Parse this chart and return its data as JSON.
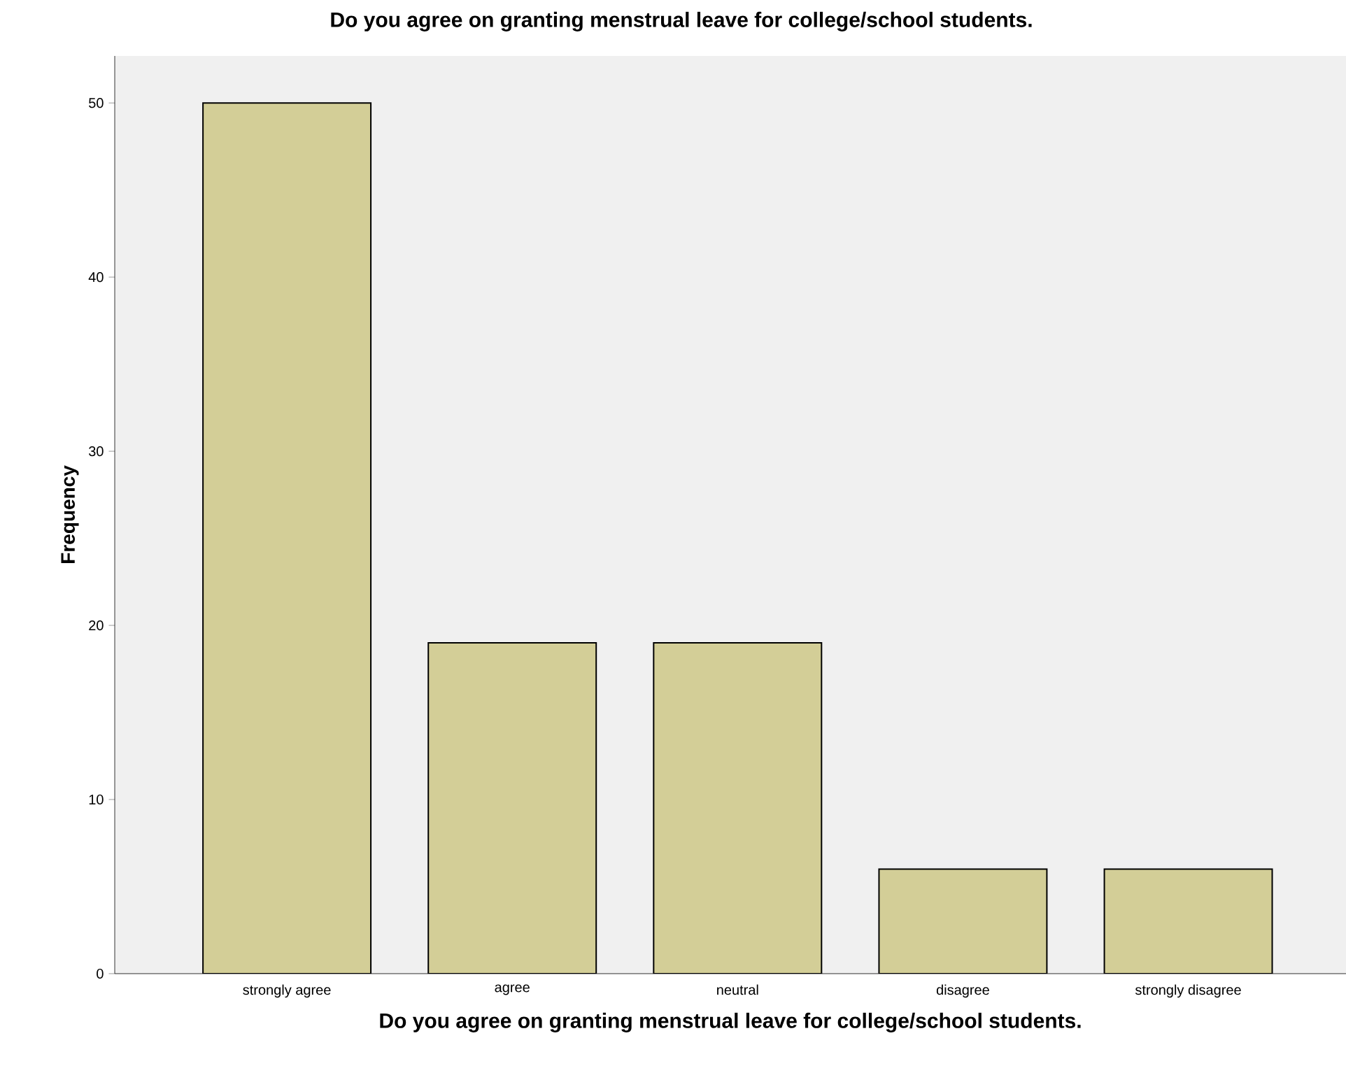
{
  "chart_data": {
    "type": "bar",
    "title": "Do you agree on granting menstrual leave for college/school students.",
    "xlabel": "Do you agree on granting menstrual leave for college/school students.",
    "ylabel": "Frequency",
    "categories": [
      "strongly agree",
      "agree",
      "neutral",
      "disagree",
      "strongly disagree"
    ],
    "values": [
      50,
      19,
      19,
      6,
      6
    ],
    "color": "#d3ce97",
    "ylim": [
      0,
      52.7
    ],
    "yticks": [
      0,
      10,
      20,
      30,
      40,
      50
    ]
  }
}
